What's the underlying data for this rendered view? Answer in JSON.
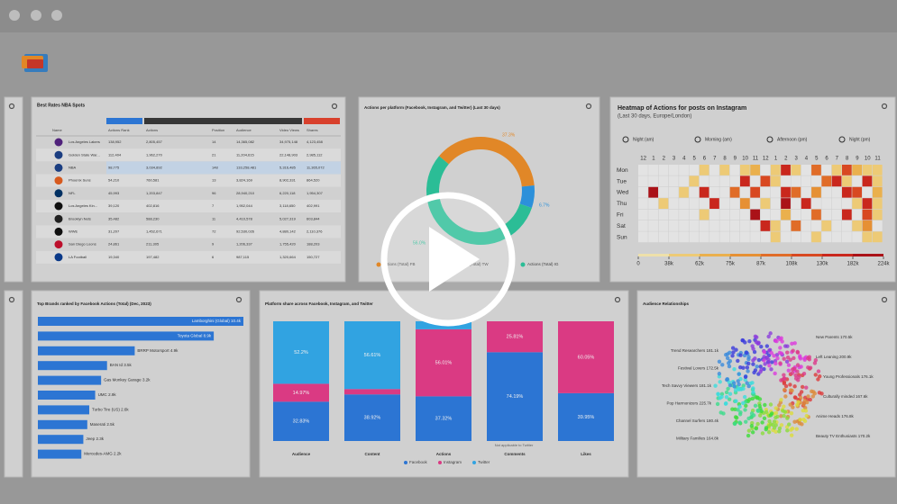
{
  "table": {
    "title": "Best Rates NBA Spots",
    "columns": [
      "Name",
      "Actions Rank",
      "Actions",
      "Position",
      "Audience",
      "Video Views",
      "Shares"
    ],
    "rows": [
      [
        "Los Angeles Lakers",
        "138,952",
        "2,805,457",
        "14",
        "14,365,082",
        "34,975,148",
        "4,123,458"
      ],
      [
        "Golden State War...",
        "112,404",
        "1,962,270",
        "21",
        "11,204,615",
        "22,148,903",
        "2,985,112"
      ],
      [
        "NBA",
        "98,775",
        "3,034,892",
        "148",
        "133,258,481",
        "5,316,485",
        "11,365,072"
      ],
      [
        "Phoenix Suns",
        "54,210",
        "760,581",
        "13",
        "3,824,169",
        "8,902,331",
        "864,520"
      ],
      [
        "NFL",
        "45,993",
        "1,203,847",
        "96",
        "28,940,210",
        "6,220,118",
        "1,954,307"
      ],
      [
        "Los Angeles Kin...",
        "39,120",
        "402,816",
        "7",
        "1,952,044",
        "3,118,650",
        "402,991"
      ],
      [
        "Brooklyn Nets",
        "35,482",
        "588,230",
        "11",
        "4,410,578",
        "5,027,319",
        "603,844"
      ],
      [
        "WWE",
        "31,207",
        "1,452,671",
        "72",
        "92,530,026",
        "4,880,142",
        "2,110,376"
      ],
      [
        "San Diego Loons",
        "24,861",
        "211,305",
        "9",
        "1,206,337",
        "1,755,420",
        "188,203"
      ],
      [
        "LA Football",
        "19,340",
        "197,482",
        "6",
        "987,115",
        "1,320,664",
        "150,727"
      ]
    ]
  },
  "donut": {
    "title": "Actions per platform (Facebook, Instagram, and Twitter) (Last 30 days)",
    "series": [
      {
        "name": "Actions (Total) FB",
        "color": "#f0902a",
        "value": 37.3,
        "value_label": "37.3%"
      },
      {
        "name": "Actions (Total) TW",
        "color": "#2f9ae8",
        "value": 6.7,
        "value_label": "6.7%"
      },
      {
        "name": "Actions (Total) IG",
        "color": "#2ec9a0",
        "value": 56.0,
        "value_label": "56.0%"
      }
    ]
  },
  "heatmap": {
    "title": "Heatmap of Actions for posts on Instagram",
    "subtitle": "(Last 30 days, Europe/London)",
    "periods": [
      "Night (am)",
      "Morning (am)",
      "Afternoon (pm)",
      "Night (pm)"
    ],
    "hours": [
      "12",
      "1",
      "2",
      "3",
      "4",
      "5",
      "6",
      "7",
      "8",
      "9",
      "10",
      "11",
      "12",
      "1",
      "2",
      "3",
      "4",
      "5",
      "6",
      "7",
      "8",
      "9",
      "10",
      "11"
    ],
    "days": [
      "Mon",
      "Tue",
      "Wed",
      "Thu",
      "Fri",
      "Sat",
      "Sun"
    ],
    "values": [
      [
        0,
        0,
        0,
        0,
        0,
        0,
        40,
        0,
        45,
        0,
        50,
        70,
        0,
        60,
        130,
        50,
        0,
        90,
        0,
        60,
        120,
        70,
        45,
        60
      ],
      [
        0,
        0,
        0,
        0,
        0,
        60,
        0,
        0,
        0,
        0,
        140,
        0,
        110,
        50,
        0,
        0,
        0,
        0,
        90,
        160,
        60,
        0,
        130,
        40
      ],
      [
        0,
        210,
        0,
        0,
        50,
        0,
        130,
        0,
        0,
        90,
        0,
        120,
        0,
        0,
        140,
        90,
        0,
        80,
        0,
        0,
        150,
        120,
        0,
        70
      ],
      [
        0,
        0,
        40,
        0,
        0,
        0,
        0,
        150,
        0,
        0,
        80,
        0,
        60,
        0,
        200,
        0,
        130,
        0,
        0,
        0,
        0,
        60,
        160,
        50
      ],
      [
        0,
        0,
        0,
        0,
        0,
        0,
        40,
        0,
        0,
        0,
        0,
        200,
        0,
        0,
        70,
        0,
        0,
        100,
        0,
        0,
        130,
        0,
        110,
        60
      ],
      [
        0,
        0,
        0,
        0,
        0,
        0,
        0,
        0,
        0,
        0,
        0,
        0,
        150,
        40,
        0,
        90,
        0,
        0,
        60,
        0,
        0,
        50,
        80,
        0
      ],
      [
        0,
        0,
        0,
        0,
        0,
        0,
        0,
        0,
        0,
        0,
        0,
        0,
        0,
        60,
        0,
        0,
        0,
        50,
        0,
        0,
        0,
        0,
        40,
        50
      ]
    ],
    "scale": [
      {
        "value": 0,
        "label": "0"
      },
      {
        "value": 38,
        "label": "38k"
      },
      {
        "value": 62,
        "label": "62k"
      },
      {
        "value": 75,
        "label": "75k"
      },
      {
        "value": 87,
        "label": "87k"
      },
      {
        "value": 108,
        "label": "108k"
      },
      {
        "value": 130,
        "label": "130k"
      },
      {
        "value": 182,
        "label": "182k"
      },
      {
        "value": 224,
        "label": "224k"
      }
    ],
    "colors": [
      "#fdeeb5",
      "#fcd77e",
      "#f9bb52",
      "#f59a38",
      "#ef732b",
      "#e64d24",
      "#d62a1f",
      "#b5141a"
    ]
  },
  "brands": {
    "title": "Top Brands ranked by Facebook Actions (Total) (Dec, 2023)",
    "color": "#2f7de1",
    "categories": [
      "Lamborghini (Global)",
      "Toyota Global",
      "BRRP Motorsport",
      "BAN Id",
      "Gas Monkey Garage",
      "UMC",
      "Turbo Tire (US)",
      "Maserati",
      "Jeep",
      "Mercedes-AMG"
    ],
    "values": [
      10.4,
      8.9,
      4.9,
      3.5,
      3.2,
      2.9,
      2.6,
      2.5,
      2.3,
      2.2
    ],
    "value_labels": [
      "10.4k",
      "8.9k",
      "4.9k",
      "3.5k",
      "3.2k",
      "2.9k",
      "2.6k",
      "2.5k",
      "2.3k",
      "2.2k"
    ]
  },
  "share": {
    "title": "Platform share across Facebook, Instagram, and Twitter",
    "note": "Not applicable to Twitter",
    "categories": [
      "Audience",
      "Content",
      "Actions",
      "Comments",
      "Likes"
    ],
    "series": [
      {
        "name": "Facebook",
        "color": "#2f7de1",
        "values": [
          32.83,
          38.92,
          37.32,
          74.19,
          39.95
        ],
        "value_labels": [
          "32.83%",
          "38.92%",
          "37.32%",
          "74.19%",
          "39.95%"
        ]
      },
      {
        "name": "Instagram",
        "color": "#e83e8c",
        "values": [
          14.97,
          4.47,
          56.01,
          25.81,
          60.05
        ],
        "value_labels": [
          "14.97%",
          null,
          "56.01%",
          "25.81%",
          "60.05%"
        ]
      },
      {
        "name": "Twitter",
        "color": "#35aef0",
        "values": [
          52.2,
          56.61,
          6.67,
          null,
          null
        ],
        "value_labels": [
          "52.2%",
          "56.61%",
          null,
          null,
          null
        ]
      }
    ]
  },
  "audience": {
    "title": "Audience Relationships",
    "left": [
      "Trend Researchers 181.1k",
      "Festival Lovers 172.5k",
      "Tech Savvy Viewers 181.1k",
      "Pop Harmonizers 225.7k",
      "Channel Surfers 180.4k",
      "Military Families 164.8k"
    ],
    "right": [
      "New Parents 170.5k",
      "Left Leaning 200.9k",
      "Young Professionals 176.1k",
      "Culturally minded 167.6k",
      "Anime Heads 176.8k",
      "Beauty TV Enthusiasts 170.2k"
    ]
  }
}
